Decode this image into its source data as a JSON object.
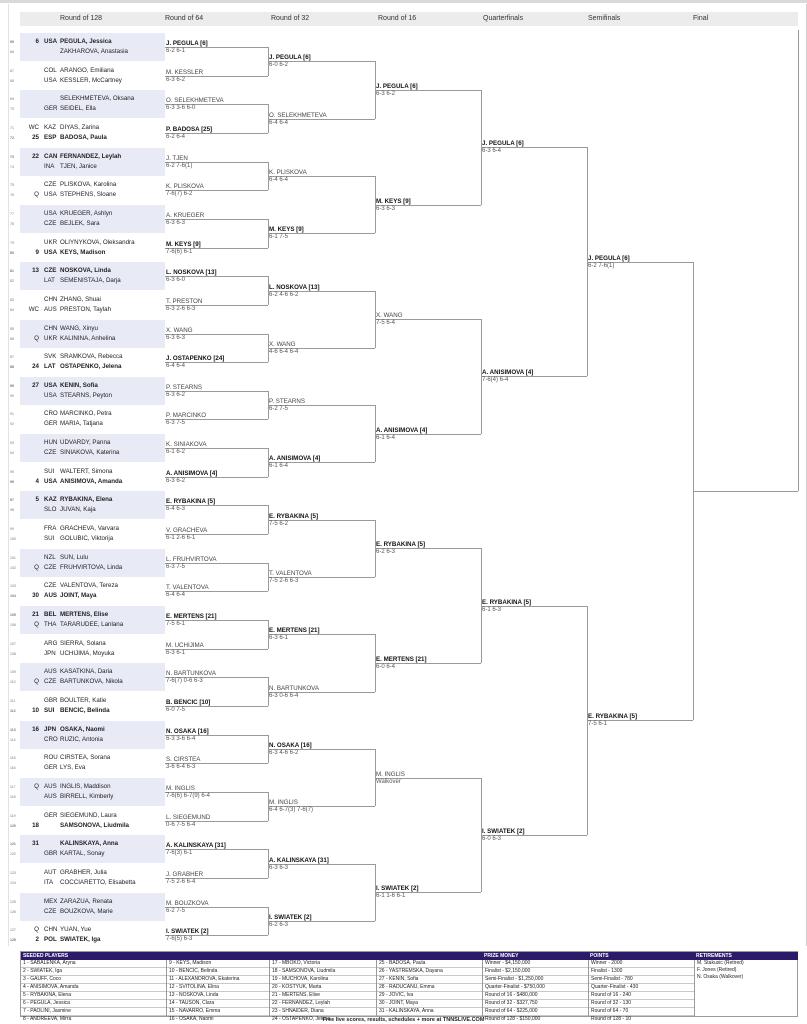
{
  "headers": [
    "Round of 128",
    "Round of 64",
    "Round of 32",
    "Round of 16",
    "Quarterfinals",
    "Semifinals",
    "Final"
  ],
  "colors": {
    "shade": "#e8eaf5",
    "footer_header": "#2d1b69",
    "line": "#9a9a9a"
  },
  "r128": [
    {
      "p1": {
        "num": "65",
        "tag": "6",
        "ctry": "USA",
        "name": "PEGULA, Jessica",
        "bold": true
      },
      "p2": {
        "num": "66",
        "tag": "",
        "ctry": "",
        "name": "ZAKHAROVA, Anastasia"
      }
    },
    {
      "p1": {
        "num": "67",
        "tag": "",
        "ctry": "COL",
        "name": "ARANGO, Emiliana"
      },
      "p2": {
        "num": "68",
        "tag": "",
        "ctry": "USA",
        "name": "KESSLER, McCartney"
      }
    },
    {
      "p1": {
        "num": "69",
        "tag": "",
        "ctry": "",
        "name": "SELEKHMETEVA, Oksana"
      },
      "p2": {
        "num": "70",
        "tag": "",
        "ctry": "GER",
        "name": "SEIDEL, Ella"
      }
    },
    {
      "p1": {
        "num": "71",
        "tag": "WC",
        "ctry": "KAZ",
        "name": "DIYAS, Zarina"
      },
      "p2": {
        "num": "72",
        "tag": "25",
        "ctry": "ESP",
        "name": "BADOSA, Paula",
        "bold": true
      }
    },
    {
      "p1": {
        "num": "73",
        "tag": "22",
        "ctry": "CAN",
        "name": "FERNANDEZ, Leylah",
        "bold": true
      },
      "p2": {
        "num": "74",
        "tag": "",
        "ctry": "INA",
        "name": "TJEN, Janice"
      }
    },
    {
      "p1": {
        "num": "75",
        "tag": "",
        "ctry": "CZE",
        "name": "PLISKOVA, Karolina"
      },
      "p2": {
        "num": "76",
        "tag": "Q",
        "ctry": "USA",
        "name": "STEPHENS, Sloane"
      }
    },
    {
      "p1": {
        "num": "77",
        "tag": "",
        "ctry": "USA",
        "name": "KRUEGER, Ashlyn"
      },
      "p2": {
        "num": "78",
        "tag": "",
        "ctry": "CZE",
        "name": "BEJLEK, Sara"
      }
    },
    {
      "p1": {
        "num": "79",
        "tag": "",
        "ctry": "UKR",
        "name": "OLIYNYKOVA, Oleksandra"
      },
      "p2": {
        "num": "80",
        "tag": "9",
        "ctry": "USA",
        "name": "KEYS, Madison",
        "bold": true
      }
    },
    {
      "p1": {
        "num": "81",
        "tag": "13",
        "ctry": "CZE",
        "name": "NOSKOVA, Linda",
        "bold": true
      },
      "p2": {
        "num": "82",
        "tag": "",
        "ctry": "LAT",
        "name": "SEMENISTAJA, Darja"
      }
    },
    {
      "p1": {
        "num": "83",
        "tag": "",
        "ctry": "CHN",
        "name": "ZHANG, Shuai"
      },
      "p2": {
        "num": "84",
        "tag": "WC",
        "ctry": "AUS",
        "name": "PRESTON, Taylah"
      }
    },
    {
      "p1": {
        "num": "85",
        "tag": "",
        "ctry": "CHN",
        "name": "WANG, Xinyu"
      },
      "p2": {
        "num": "86",
        "tag": "Q",
        "ctry": "UKR",
        "name": "KALININA, Anhelina"
      }
    },
    {
      "p1": {
        "num": "87",
        "tag": "",
        "ctry": "SVK",
        "name": "SRAMKOVA, Rebecca"
      },
      "p2": {
        "num": "88",
        "tag": "24",
        "ctry": "LAT",
        "name": "OSTAPENKO, Jelena",
        "bold": true
      }
    },
    {
      "p1": {
        "num": "89",
        "tag": "27",
        "ctry": "USA",
        "name": "KENIN, Sofia",
        "bold": true
      },
      "p2": {
        "num": "90",
        "tag": "",
        "ctry": "USA",
        "name": "STEARNS, Peyton"
      }
    },
    {
      "p1": {
        "num": "91",
        "tag": "",
        "ctry": "CRO",
        "name": "MARCINKO, Petra"
      },
      "p2": {
        "num": "92",
        "tag": "",
        "ctry": "GER",
        "name": "MARIA, Tatjana"
      }
    },
    {
      "p1": {
        "num": "93",
        "tag": "",
        "ctry": "HUN",
        "name": "UDVARDY, Panna"
      },
      "p2": {
        "num": "94",
        "tag": "",
        "ctry": "CZE",
        "name": "SINIAKOVA, Katerina"
      }
    },
    {
      "p1": {
        "num": "95",
        "tag": "",
        "ctry": "SUI",
        "name": "WALTERT, Simona"
      },
      "p2": {
        "num": "96",
        "tag": "4",
        "ctry": "USA",
        "name": "ANISIMOVA, Amanda",
        "bold": true
      }
    },
    {
      "p1": {
        "num": "97",
        "tag": "5",
        "ctry": "KAZ",
        "name": "RYBAKINA, Elena",
        "bold": true
      },
      "p2": {
        "num": "98",
        "tag": "",
        "ctry": "SLO",
        "name": "JUVAN, Kaja"
      }
    },
    {
      "p1": {
        "num": "99",
        "tag": "",
        "ctry": "FRA",
        "name": "GRACHEVA, Varvara"
      },
      "p2": {
        "num": "100",
        "tag": "",
        "ctry": "SUI",
        "name": "GOLUBIC, Viktorija"
      }
    },
    {
      "p1": {
        "num": "101",
        "tag": "",
        "ctry": "NZL",
        "name": "SUN, Lulu"
      },
      "p2": {
        "num": "102",
        "tag": "Q",
        "ctry": "CZE",
        "name": "FRUHVIRTOVA, Linda"
      }
    },
    {
      "p1": {
        "num": "103",
        "tag": "",
        "ctry": "CZE",
        "name": "VALENTOVA, Tereza"
      },
      "p2": {
        "num": "104",
        "tag": "30",
        "ctry": "AUS",
        "name": "JOINT, Maya",
        "bold": true
      }
    },
    {
      "p1": {
        "num": "105",
        "tag": "21",
        "ctry": "BEL",
        "name": "MERTENS, Elise",
        "bold": true
      },
      "p2": {
        "num": "106",
        "tag": "Q",
        "ctry": "THA",
        "name": "TARARUDEE, Lanlana"
      }
    },
    {
      "p1": {
        "num": "107",
        "tag": "",
        "ctry": "ARG",
        "name": "SIERRA, Solana"
      },
      "p2": {
        "num": "108",
        "tag": "",
        "ctry": "JPN",
        "name": "UCHIJIMA, Moyuka"
      }
    },
    {
      "p1": {
        "num": "109",
        "tag": "",
        "ctry": "AUS",
        "name": "KASATKINA, Daria"
      },
      "p2": {
        "num": "110",
        "tag": "Q",
        "ctry": "CZE",
        "name": "BARTUNKOVA, Nikola"
      }
    },
    {
      "p1": {
        "num": "111",
        "tag": "",
        "ctry": "GBR",
        "name": "BOULTER, Katie"
      },
      "p2": {
        "num": "112",
        "tag": "10",
        "ctry": "SUI",
        "name": "BENCIC, Belinda",
        "bold": true
      }
    },
    {
      "p1": {
        "num": "113",
        "tag": "16",
        "ctry": "JPN",
        "name": "OSAKA, Naomi",
        "bold": true
      },
      "p2": {
        "num": "114",
        "tag": "",
        "ctry": "CRO",
        "name": "RUZIC, Antonia"
      }
    },
    {
      "p1": {
        "num": "115",
        "tag": "",
        "ctry": "ROU",
        "name": "CIRSTEA, Sorana"
      },
      "p2": {
        "num": "116",
        "tag": "",
        "ctry": "GER",
        "name": "LYS, Eva"
      }
    },
    {
      "p1": {
        "num": "117",
        "tag": "Q",
        "ctry": "AUS",
        "name": "INGLIS, Maddison"
      },
      "p2": {
        "num": "118",
        "tag": "",
        "ctry": "AUS",
        "name": "BIRRELL, Kimberly"
      }
    },
    {
      "p1": {
        "num": "119",
        "tag": "",
        "ctry": "GER",
        "name": "SIEGEMUND, Laura"
      },
      "p2": {
        "num": "120",
        "tag": "18",
        "ctry": "",
        "name": "SAMSONOVA, Liudmila",
        "bold": true
      }
    },
    {
      "p1": {
        "num": "121",
        "tag": "31",
        "ctry": "",
        "name": "KALINSKAYA, Anna",
        "bold": true
      },
      "p2": {
        "num": "122",
        "tag": "",
        "ctry": "GBR",
        "name": "KARTAL, Sonay"
      }
    },
    {
      "p1": {
        "num": "123",
        "tag": "",
        "ctry": "AUT",
        "name": "GRABHER, Julia"
      },
      "p2": {
        "num": "124",
        "tag": "",
        "ctry": "ITA",
        "name": "COCCIARETTO, Elisabetta"
      }
    },
    {
      "p1": {
        "num": "125",
        "tag": "",
        "ctry": "MEX",
        "name": "ZARAZUA, Renata"
      },
      "p2": {
        "num": "126",
        "tag": "",
        "ctry": "CZE",
        "name": "BOUZKOVA, Marie"
      }
    },
    {
      "p1": {
        "num": "127",
        "tag": "Q",
        "ctry": "CHN",
        "name": "YUAN, Yue"
      },
      "p2": {
        "num": "128",
        "tag": "2",
        "ctry": "POL",
        "name": "SWIATEK, Iga",
        "bold": true
      }
    }
  ],
  "rounds": [
    [
      {
        "name": "J. PEGULA [6]",
        "score": "6-2 6-1"
      },
      {
        "name": "M. KESSLER",
        "score": "6-3 6-2"
      },
      {
        "name": "O. SELEKHMETEVA",
        "score": "6-3 3-6 6-0"
      },
      {
        "name": "P. BADOSA [25]",
        "score": "6-2 6-4"
      },
      {
        "name": "J. TJEN",
        "score": "6-2 7-6(1)"
      },
      {
        "name": "K. PLISKOVA",
        "score": "7-6(7) 6-2"
      },
      {
        "name": "A. KRUEGER",
        "score": "6-3 6-3"
      },
      {
        "name": "M. KEYS [9]",
        "score": "7-6(6) 6-1"
      },
      {
        "name": "L. NOSKOVA [13]",
        "score": "6-3 6-0"
      },
      {
        "name": "T. PRESTON",
        "score": "6-3 2-6 6-3"
      },
      {
        "name": "X. WANG",
        "score": "6-3 6-3"
      },
      {
        "name": "J. OSTAPENKO [24]",
        "score": "6-4 6-4"
      },
      {
        "name": "P. STEARNS",
        "score": "6-3 6-2"
      },
      {
        "name": "P. MARCINKO",
        "score": "6-3 7-5"
      },
      {
        "name": "K. SINIAKOVA",
        "score": "6-1 6-2"
      },
      {
        "name": "A. ANISIMOVA [4]",
        "score": "6-3 6-2"
      },
      {
        "name": "E. RYBAKINA [5]",
        "score": "6-4 6-3"
      },
      {
        "name": "V. GRACHEVA",
        "score": "6-1 2-6 6-1"
      },
      {
        "name": "L. FRUHVIRTOVA",
        "score": "6-3 7-5"
      },
      {
        "name": "T. VALENTOVA",
        "score": "6-4 6-4"
      },
      {
        "name": "E. MERTENS [21]",
        "score": "7-5 6-1"
      },
      {
        "name": "M. UCHIJIMA",
        "score": "6-3 6-1"
      },
      {
        "name": "N. BARTUNKOVA",
        "score": "7-6(7) 0-6 6-3"
      },
      {
        "name": "B. BENCIC [10]",
        "score": "6-0 7-5"
      },
      {
        "name": "N. OSAKA [16]",
        "score": "6-3 3-6 6-4"
      },
      {
        "name": "S. CIRSTEA",
        "score": "3-6 6-4 6-3"
      },
      {
        "name": "M. INGLIS",
        "score": "7-6(6) 6-7(9) 6-4"
      },
      {
        "name": "L. SIEGEMUND",
        "score": "0-6 7-5 6-4"
      },
      {
        "name": "A. KALINSKAYA [31]",
        "score": "7-6(3) 6-1"
      },
      {
        "name": "J. GRABHER",
        "score": "7-5 2-6 6-4"
      },
      {
        "name": "M. BOUZKOVA",
        "score": "6-2 7-5"
      },
      {
        "name": "I. SWIATEK [2]",
        "score": "7-6(5) 6-3"
      }
    ],
    [
      {
        "name": "J. PEGULA [6]",
        "score": "6-0 6-2"
      },
      {
        "name": "O. SELEKHMETEVA",
        "score": "6-4 6-4"
      },
      {
        "name": "K. PLISKOVA",
        "score": "6-4 6-4"
      },
      {
        "name": "M. KEYS [9]",
        "score": "6-1 7-5"
      },
      {
        "name": "L. NOSKOVA [13]",
        "score": "6-2 4-6 6-2"
      },
      {
        "name": "X. WANG",
        "score": "4-6 6-4 6-4"
      },
      {
        "name": "P. STEARNS",
        "score": "6-2 7-5"
      },
      {
        "name": "A. ANISIMOVA [4]",
        "score": "6-1 6-4"
      },
      {
        "name": "E. RYBAKINA [5]",
        "score": "7-5 6-2"
      },
      {
        "name": "T. VALENTOVA",
        "score": "7-5 2-6 6-3"
      },
      {
        "name": "E. MERTENS [21]",
        "score": "6-3 6-1"
      },
      {
        "name": "N. BARTUNKOVA",
        "score": "6-3 0-6 6-4"
      },
      {
        "name": "N. OSAKA [16]",
        "score": "6-3 4-6 6-2"
      },
      {
        "name": "M. INGLIS",
        "score": "6-4 6-7(3) 7-6(7)"
      },
      {
        "name": "A. KALINSKAYA [31]",
        "score": "6-3 6-3"
      },
      {
        "name": "I. SWIATEK [2]",
        "score": "6-2 6-3"
      }
    ],
    [
      {
        "name": "J. PEGULA [6]",
        "score": "6-3 6-2"
      },
      {
        "name": "M. KEYS [9]",
        "score": "6-3 6-3"
      },
      {
        "name": "X. WANG",
        "score": "7-5 6-4"
      },
      {
        "name": "A. ANISIMOVA [4]",
        "score": "6-1 6-4"
      },
      {
        "name": "E. RYBAKINA [5]",
        "score": "6-2 6-3"
      },
      {
        "name": "E. MERTENS [21]",
        "score": "6-0 6-4"
      },
      {
        "name": "M. INGLIS",
        "score": "Walkover"
      },
      {
        "name": "I. SWIATEK [2]",
        "score": "6-1 1-6 6-1"
      }
    ],
    [
      {
        "name": "J. PEGULA [6]",
        "score": "6-3 6-4"
      },
      {
        "name": "A. ANISIMOVA [4]",
        "score": "7-6(4) 6-4"
      },
      {
        "name": "E. RYBAKINA [5]",
        "score": "6-1 6-3"
      },
      {
        "name": "I. SWIATEK [2]",
        "score": "6-0 6-3"
      }
    ],
    [
      {
        "name": "J. PEGULA [6]",
        "score": "6-2 7-6(1)"
      },
      {
        "name": "E. RYBAKINA [5]",
        "score": "7-5 6-1"
      }
    ]
  ],
  "footer": {
    "seeded_title": "SEEDED PLAYERS",
    "seeded_cols": [
      [
        "1 - SABALENKA, Aryna",
        "2 - SWIATEK, Iga",
        "3 - GAUFF, Coco",
        "4 - ANISIMOVA, Amanda",
        "5 - RYBAKINA, Elena",
        "6 - PEGULA, Jessica",
        "7 - PAOLINI, Jasmine",
        "8 - ANDREEVA, Mirra"
      ],
      [
        "9 - KEYS, Madison",
        "10 - BENCIC, Belinda",
        "11 - ALEXANDROVA, Ekaterina",
        "12 - SVITOLINA, Elina",
        "13 - NOSKOVA, Linda",
        "14 - TAUSON, Clara",
        "15 - NAVARRO, Emma",
        "16 - OSAKA, Naomi"
      ],
      [
        "17 - MBOKO, Victoria",
        "18 - SAMSONOVA, Liudmila",
        "19 - MUCHOVA, Karolina",
        "20 - KOSTYUK, Marta",
        "21 - MERTENS, Elise",
        "22 - FERNANDEZ, Leylah",
        "23 - SHNAIDER, Diana",
        "24 - OSTAPENKO, Jelena"
      ],
      [
        "25 - BADOSA, Paula",
        "26 - YASTREMSKA, Dayana",
        "27 - KENIN, Sofia",
        "28 - RADUCANU, Emma",
        "29 - JOVIC, Iva",
        "30 - JOINT, Maya",
        "31 - KALINSKAYA, Anna",
        ""
      ]
    ],
    "prize_title": "PRIZE MONEY",
    "prize": [
      "Winner - $4,150,000",
      "Finalist - $2,150,000",
      "Semi-Finalist - $1,250,000",
      "Quarter-Finalist - $750,000",
      "Round of 16 - $480,000",
      "Round of 32 - $327,750",
      "Round of 64 - $225,000",
      "Round of 128 - $150,000"
    ],
    "points_title": "POINTS",
    "points": [
      "Winner - 2000",
      "Finalist - 1300",
      "Semi-Finalist - 780",
      "Quarter-Finalist - 430",
      "Round of 16 - 240",
      "Round of 32 - 130",
      "Round of 64 - 70",
      "Round of 128 - 10"
    ],
    "retire_title": "RETIREMENTS",
    "retirements": [
      "M. Stakusic (Retired)",
      "F. Jones (Retired)",
      "N. Osaka (Walkover)"
    ],
    "credit": "Free live scores, results, schedules + more at TNNSLIVE.COM"
  }
}
